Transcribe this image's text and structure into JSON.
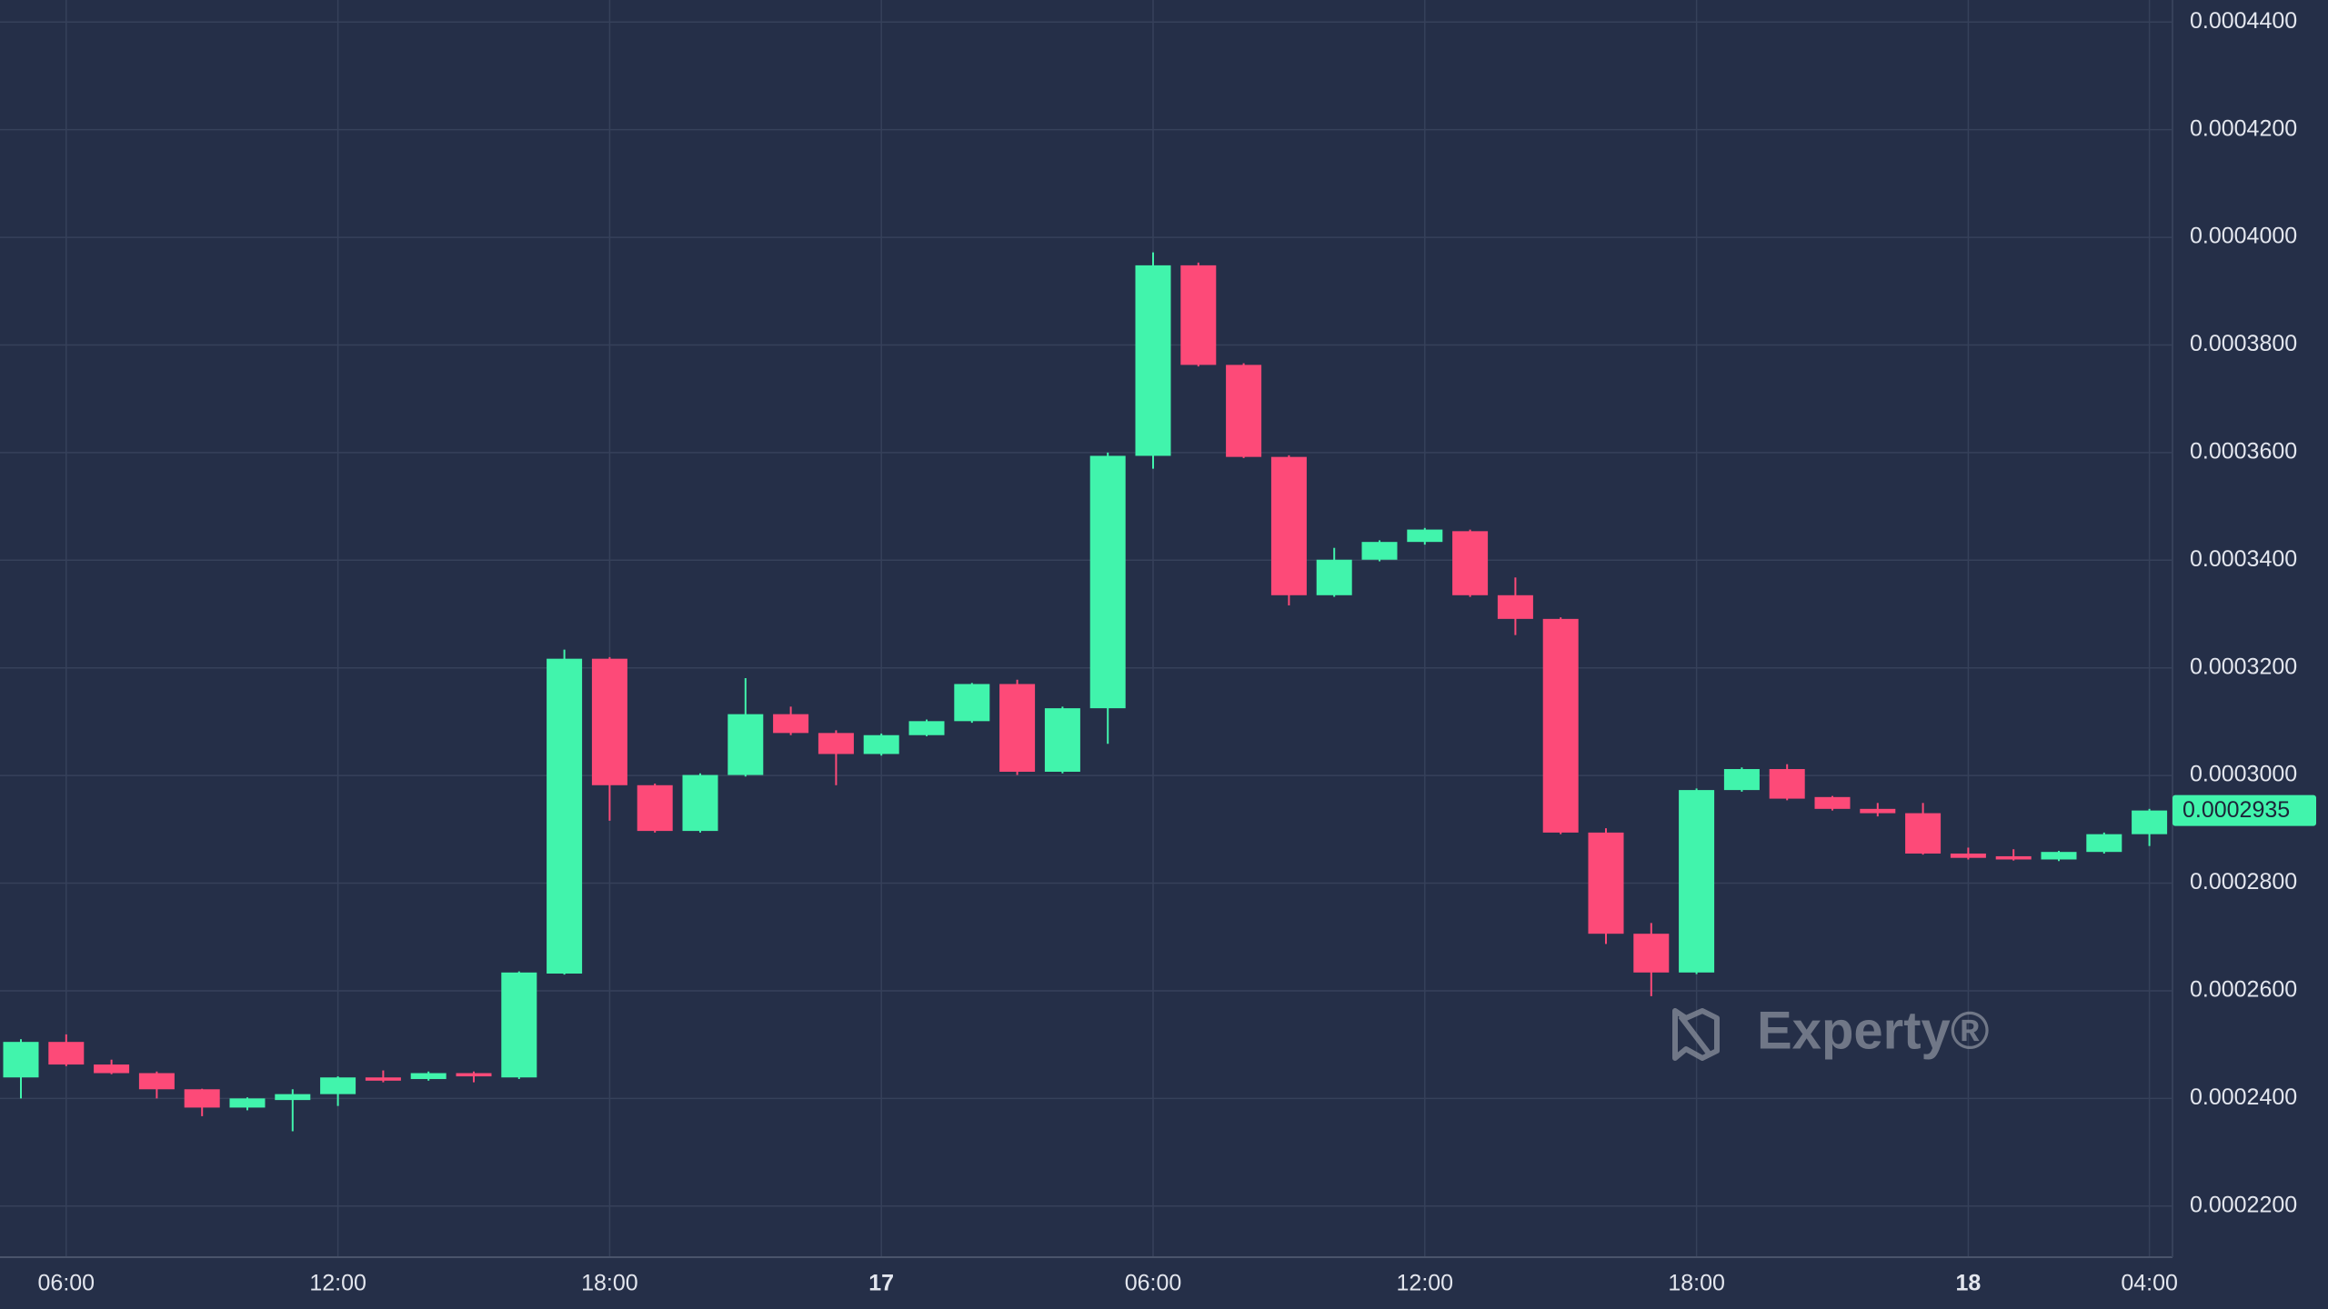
{
  "chart_data": {
    "type": "candlestick",
    "categories": [
      null,
      "06:00",
      null,
      null,
      null,
      null,
      null,
      "12:00",
      null,
      null,
      null,
      null,
      null,
      "18:00",
      null,
      null,
      null,
      null,
      null,
      "17",
      null,
      null,
      null,
      null,
      null,
      "06:00",
      null,
      null,
      null,
      null,
      null,
      "12:00",
      null,
      null,
      null,
      null,
      null,
      "18:00",
      null,
      null,
      null,
      null,
      null,
      "18",
      null,
      null,
      null,
      "04:00"
    ],
    "open": [
      0.0002439,
      0.0002505,
      0.0002463,
      0.0002447,
      0.0002417,
      0.0002383,
      0.0002397,
      0.0002408,
      0.0002439,
      0.0002436,
      0.0002447,
      0.0002439,
      0.0002632,
      0.0003217,
      0.0002982,
      0.0002897,
      0.0003001,
      0.0003114,
      0.0003079,
      0.000304,
      0.0003075,
      0.0003101,
      0.000317,
      0.0003007,
      0.0003125,
      0.0003594,
      0.0003948,
      0.0003763,
      0.0003592,
      0.0003335,
      0.0003401,
      0.0003434,
      0.0003454,
      0.0003335,
      0.0003291,
      0.0002894,
      0.0002706,
      0.0002634,
      0.0002973,
      0.0003012,
      0.000296,
      0.0002938,
      0.000293,
      0.0002855,
      0.000285,
      0.0002844,
      0.0002858,
      0.0002891
    ],
    "high": [
      0.000251,
      0.0002519,
      0.0002472,
      0.000245,
      0.0002418,
      0.0002402,
      0.0002417,
      0.0002441,
      0.0002452,
      0.000245,
      0.000245,
      0.0002636,
      0.0003234,
      0.000322,
      0.0002985,
      0.0003004,
      0.0003181,
      0.0003128,
      0.0003084,
      0.0003078,
      0.0003104,
      0.0003172,
      0.0003178,
      0.0003128,
      0.00036,
      0.0003972,
      0.0003953,
      0.0003766,
      0.0003595,
      0.0003423,
      0.0003437,
      0.000346,
      0.0003457,
      0.0003368,
      0.0003294,
      0.0002902,
      0.0002726,
      0.0002976,
      0.0003015,
      0.0003021,
      0.0002962,
      0.0002949,
      0.0002949,
      0.0002866,
      0.0002863,
      0.000286,
      0.0002894,
      0.0002938
    ],
    "low": [
      0.00024,
      0.000246,
      0.0002445,
      0.00024,
      0.0002367,
      0.0002378,
      0.0002339,
      0.0002386,
      0.000243,
      0.0002433,
      0.000243,
      0.0002436,
      0.000263,
      0.0002916,
      0.0002894,
      0.0002894,
      0.0002998,
      0.0003075,
      0.0002982,
      0.0003037,
      0.0003073,
      0.0003098,
      0.0003001,
      0.0003004,
      0.0003059,
      0.000357,
      0.000376,
      0.000359,
      0.0003316,
      0.0003332,
      0.0003398,
      0.0003429,
      0.0003332,
      0.0003261,
      0.0002891,
      0.0002687,
      0.000259,
      0.0002631,
      0.000297,
      0.0002954,
      0.0002935,
      0.0002924,
      0.0002853,
      0.0002844,
      0.0002842,
      0.0002841,
      0.0002855,
      0.0002869
    ],
    "close": [
      0.0002505,
      0.0002463,
      0.0002447,
      0.0002417,
      0.0002383,
      0.00024,
      0.0002408,
      0.0002439,
      0.0002433,
      0.0002447,
      0.0002441,
      0.0002634,
      0.0003217,
      0.0002982,
      0.0002897,
      0.0003001,
      0.0003114,
      0.0003079,
      0.000304,
      0.0003075,
      0.0003101,
      0.000317,
      0.0003007,
      0.0003125,
      0.0003594,
      0.0003948,
      0.0003763,
      0.0003592,
      0.0003335,
      0.0003401,
      0.0003434,
      0.0003457,
      0.0003335,
      0.0003291,
      0.0002894,
      0.0002706,
      0.0002634,
      0.0002973,
      0.0003012,
      0.0002957,
      0.0002938,
      0.000293,
      0.0002855,
      0.0002847,
      0.0002844,
      0.0002858,
      0.0002891,
      0.0002935
    ],
    "up_color": "#41f4ac",
    "down_color": "#fd4a78",
    "last_price_label": "0.0002935",
    "watermark": "Experty®",
    "ylim": [
      0.0002105,
      0.0004441
    ],
    "yticks": [
      {
        "value": 0.00022,
        "label": "0.0002200"
      },
      {
        "value": 0.00024,
        "label": "0.0002400"
      },
      {
        "value": 0.00026,
        "label": "0.0002600"
      },
      {
        "value": 0.00028,
        "label": "0.0002800"
      },
      {
        "value": 0.0003,
        "label": "0.0003000"
      },
      {
        "value": 0.00032,
        "label": "0.0003200"
      },
      {
        "value": 0.00034,
        "label": "0.0003400"
      },
      {
        "value": 0.00036,
        "label": "0.0003600"
      },
      {
        "value": 0.00038,
        "label": "0.0003800"
      },
      {
        "value": 0.0004,
        "label": "0.0004000"
      },
      {
        "value": 0.00042,
        "label": "0.0004200"
      },
      {
        "value": 0.00044,
        "label": "0.0004400"
      }
    ],
    "grid": true
  }
}
